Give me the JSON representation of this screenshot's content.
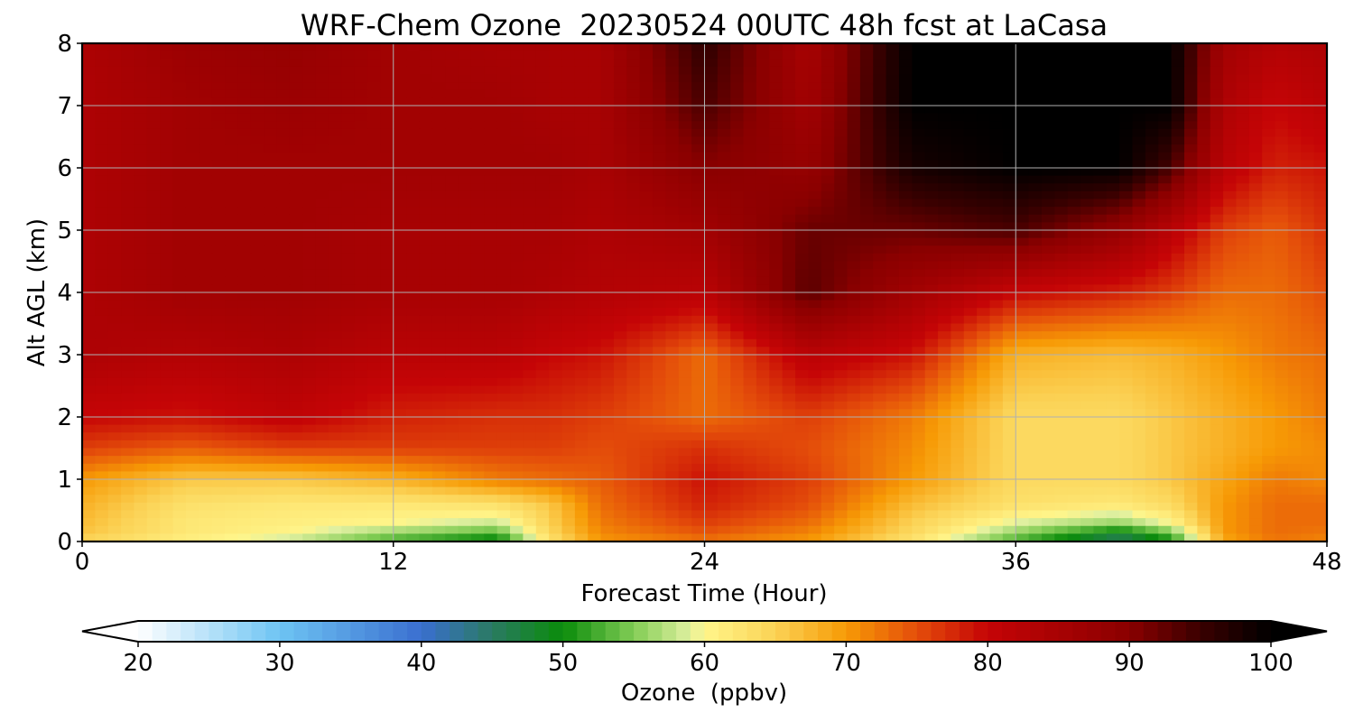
{
  "chart_data": {
    "type": "heatmap",
    "title": "WRF-Chem Ozone  20230524 00UTC 48h fcst at LaCasa",
    "xlabel": "Forecast Time (Hour)",
    "ylabel": "Alt AGL (km)",
    "xlim": [
      0,
      48
    ],
    "ylim": [
      0,
      8
    ],
    "x_ticks": [
      0,
      12,
      24,
      36,
      48
    ],
    "y_ticks": [
      0,
      1,
      2,
      3,
      4,
      5,
      6,
      7,
      8
    ],
    "grid": true,
    "colorbar": {
      "label": "Ozone  (ppbv)",
      "orientation": "horizontal",
      "extend": "both",
      "range": [
        20,
        100
      ],
      "ticks": [
        20,
        30,
        40,
        50,
        60,
        70,
        80,
        90,
        100
      ],
      "colormap": [
        [
          20,
          "#ffffff"
        ],
        [
          30,
          "#6ec4f3"
        ],
        [
          40,
          "#3a6fd0"
        ],
        [
          45,
          "#2a7a62"
        ],
        [
          50,
          "#0a8c0a"
        ],
        [
          55,
          "#82cc55"
        ],
        [
          59,
          "#e0f0a0"
        ],
        [
          60,
          "#fff58a"
        ],
        [
          65,
          "#fbd255"
        ],
        [
          70,
          "#f79a05"
        ],
        [
          75,
          "#e44d0a"
        ],
        [
          80,
          "#c50406"
        ],
        [
          90,
          "#8a0000"
        ],
        [
          95,
          "#3a0000"
        ],
        [
          100,
          "#000000"
        ]
      ]
    },
    "hours": [
      0,
      4,
      8,
      12,
      16,
      18,
      20,
      24,
      28,
      32,
      36,
      40,
      42,
      44,
      46,
      48
    ],
    "altitudes_km": [
      0,
      0.1,
      0.3,
      0.6,
      1.0,
      1.5,
      2.0,
      3.0,
      4.0,
      5.0,
      6.0,
      7.0,
      8.0
    ],
    "ozone_ppbv": [
      [
        64,
        60,
        57,
        52,
        48,
        62,
        70,
        72,
        70,
        62,
        52,
        45,
        50,
        68,
        72,
        71
      ],
      [
        66,
        62,
        60,
        55,
        52,
        64,
        71,
        74,
        71,
        64,
        55,
        47,
        53,
        70,
        73,
        72
      ],
      [
        67,
        62,
        61,
        60,
        58,
        65,
        72,
        76,
        73,
        65,
        59,
        56,
        60,
        70,
        73,
        73
      ],
      [
        68,
        63,
        62,
        62,
        63,
        66,
        73,
        78,
        75,
        67,
        63,
        62,
        64,
        70,
        73,
        73
      ],
      [
        70,
        66,
        66,
        68,
        72,
        73,
        74,
        79,
        76,
        70,
        64,
        64,
        66,
        69,
        72,
        71
      ],
      [
        76,
        74,
        76,
        76,
        76,
        76,
        75,
        77,
        75,
        71,
        64,
        64,
        66,
        68,
        70,
        71
      ],
      [
        80,
        79,
        81,
        78,
        77,
        77,
        76,
        73,
        76,
        72,
        64,
        64,
        66,
        68,
        70,
        72
      ],
      [
        84,
        83,
        84,
        82,
        82,
        80,
        79,
        73,
        82,
        79,
        68,
        67,
        68,
        70,
        72,
        73
      ],
      [
        84,
        86,
        86,
        85,
        85,
        84,
        83,
        82,
        93,
        86,
        80,
        78,
        76,
        73,
        73,
        75
      ],
      [
        84,
        86,
        86,
        85,
        85,
        85,
        84,
        86,
        92,
        92,
        94,
        88,
        82,
        76,
        74,
        77
      ],
      [
        84,
        86,
        86,
        86,
        86,
        86,
        85,
        90,
        88,
        98,
        100,
        100,
        94,
        82,
        78,
        79
      ],
      [
        84,
        86,
        87,
        86,
        86,
        85,
        85,
        94,
        86,
        100,
        100,
        100,
        100,
        84,
        80,
        82
      ],
      [
        84,
        87,
        88,
        86,
        85,
        85,
        85,
        96,
        85,
        100,
        100,
        100,
        100,
        86,
        83,
        84
      ]
    ]
  }
}
